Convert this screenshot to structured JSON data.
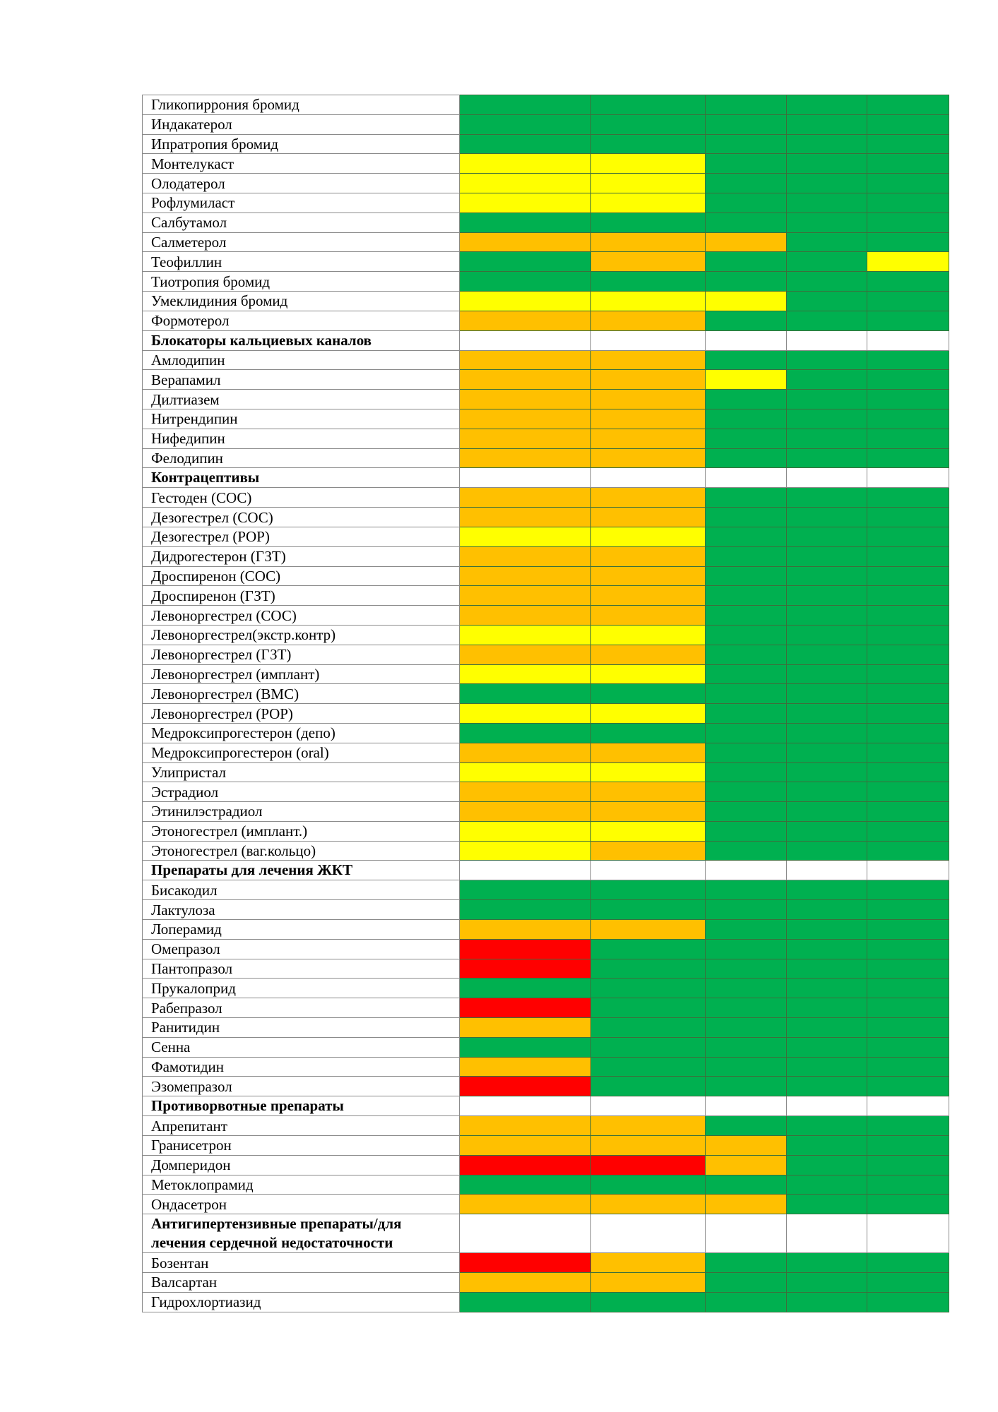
{
  "table": {
    "rows": [
      {
        "label": "Гликопиррония бромид",
        "colors": [
          "#00b050",
          "#00b050",
          "#00b050",
          "#00b050",
          "#00b050"
        ]
      },
      {
        "label": "Индакатерол",
        "colors": [
          "#00b050",
          "#00b050",
          "#00b050",
          "#00b050",
          "#00b050"
        ]
      },
      {
        "label": "Ипратропия бромид",
        "colors": [
          "#00b050",
          "#00b050",
          "#00b050",
          "#00b050",
          "#00b050"
        ]
      },
      {
        "label": "Монтелукаст",
        "colors": [
          "#ffff00",
          "#ffff00",
          "#00b050",
          "#00b050",
          "#00b050"
        ]
      },
      {
        "label": "Олодатерол",
        "colors": [
          "#ffff00",
          "#ffff00",
          "#00b050",
          "#00b050",
          "#00b050"
        ]
      },
      {
        "label": "Рофлумиласт",
        "colors": [
          "#ffff00",
          "#ffff00",
          "#00b050",
          "#00b050",
          "#00b050"
        ]
      },
      {
        "label": "Салбутамол",
        "colors": [
          "#00b050",
          "#00b050",
          "#00b050",
          "#00b050",
          "#00b050"
        ]
      },
      {
        "label": "Салметерол",
        "colors": [
          "#ffc000",
          "#ffc000",
          "#ffc000",
          "#00b050",
          "#00b050"
        ]
      },
      {
        "label": "Теофиллин",
        "colors": [
          "#00b050",
          "#ffc000",
          "#00b050",
          "#00b050",
          "#ffff00"
        ]
      },
      {
        "label": "Тиотропия бромид",
        "colors": [
          "#00b050",
          "#00b050",
          "#00b050",
          "#00b050",
          "#00b050"
        ]
      },
      {
        "label": "Умеклидиния бромид",
        "colors": [
          "#ffff00",
          "#ffff00",
          "#ffff00",
          "#00b050",
          "#00b050"
        ]
      },
      {
        "label": "Формотерол",
        "colors": [
          "#ffc000",
          "#ffc000",
          "#00b050",
          "#00b050",
          "#00b050"
        ]
      },
      {
        "label": "Блокаторы кальциевых каналов",
        "section": true
      },
      {
        "label": "Амлодипин",
        "colors": [
          "#ffc000",
          "#ffc000",
          "#00b050",
          "#00b050",
          "#00b050"
        ]
      },
      {
        "label": "Верапамил",
        "colors": [
          "#ffc000",
          "#ffc000",
          "#ffff00",
          "#00b050",
          "#00b050"
        ]
      },
      {
        "label": "Дилтиазем",
        "colors": [
          "#ffc000",
          "#ffc000",
          "#00b050",
          "#00b050",
          "#00b050"
        ]
      },
      {
        "label": "Нитрендипин",
        "colors": [
          "#ffc000",
          "#ffc000",
          "#00b050",
          "#00b050",
          "#00b050"
        ]
      },
      {
        "label": "Нифедипин",
        "colors": [
          "#ffc000",
          "#ffc000",
          "#00b050",
          "#00b050",
          "#00b050"
        ]
      },
      {
        "label": "Фелодипин",
        "colors": [
          "#ffc000",
          "#ffc000",
          "#00b050",
          "#00b050",
          "#00b050"
        ]
      },
      {
        "label": "Контрацептивы",
        "section": true
      },
      {
        "label": "Гестоден (СОС)",
        "colors": [
          "#ffc000",
          "#ffc000",
          "#00b050",
          "#00b050",
          "#00b050"
        ]
      },
      {
        "label": "Дезогестрел (СОС)",
        "colors": [
          "#ffc000",
          "#ffc000",
          "#00b050",
          "#00b050",
          "#00b050"
        ]
      },
      {
        "label": "Дезогестрел (POP)",
        "colors": [
          "#ffff00",
          "#ffff00",
          "#00b050",
          "#00b050",
          "#00b050"
        ]
      },
      {
        "label": "Дидрогестерон (ГЗТ)",
        "colors": [
          "#ffc000",
          "#ffc000",
          "#00b050",
          "#00b050",
          "#00b050"
        ]
      },
      {
        "label": "Дроспиренон (СОС)",
        "colors": [
          "#ffc000",
          "#ffc000",
          "#00b050",
          "#00b050",
          "#00b050"
        ]
      },
      {
        "label": "Дроспиренон (ГЗТ)",
        "colors": [
          "#ffc000",
          "#ffc000",
          "#00b050",
          "#00b050",
          "#00b050"
        ]
      },
      {
        "label": "Левоноргестрел (СОС)",
        "colors": [
          "#ffc000",
          "#ffc000",
          "#00b050",
          "#00b050",
          "#00b050"
        ]
      },
      {
        "label": "Левоноргестрел(экстр.контр)",
        "colors": [
          "#ffff00",
          "#ffff00",
          "#00b050",
          "#00b050",
          "#00b050"
        ]
      },
      {
        "label": "Левоноргестрел (ГЗТ)",
        "colors": [
          "#ffc000",
          "#ffc000",
          "#00b050",
          "#00b050",
          "#00b050"
        ]
      },
      {
        "label": "Левоноргестрел (имплант)",
        "colors": [
          "#ffff00",
          "#ffff00",
          "#00b050",
          "#00b050",
          "#00b050"
        ]
      },
      {
        "label": "Левоноргестрел (ВМС)",
        "colors": [
          "#00b050",
          "#00b050",
          "#00b050",
          "#00b050",
          "#00b050"
        ]
      },
      {
        "label": "Левоноргестрел (POP)",
        "colors": [
          "#ffff00",
          "#ffff00",
          "#00b050",
          "#00b050",
          "#00b050"
        ]
      },
      {
        "label": "Медроксипрогестерон (депо)",
        "colors": [
          "#00b050",
          "#00b050",
          "#00b050",
          "#00b050",
          "#00b050"
        ]
      },
      {
        "label": "Медроксипрогестерон (oral)",
        "colors": [
          "#ffc000",
          "#ffc000",
          "#00b050",
          "#00b050",
          "#00b050"
        ]
      },
      {
        "label": "Улипристал",
        "colors": [
          "#ffff00",
          "#ffff00",
          "#00b050",
          "#00b050",
          "#00b050"
        ]
      },
      {
        "label": "Эстрадиол",
        "colors": [
          "#ffc000",
          "#ffc000",
          "#00b050",
          "#00b050",
          "#00b050"
        ]
      },
      {
        "label": "Этинилэстрадиол",
        "colors": [
          "#ffc000",
          "#ffc000",
          "#00b050",
          "#00b050",
          "#00b050"
        ]
      },
      {
        "label": "Этоногестрел (имплант.)",
        "colors": [
          "#ffff00",
          "#ffff00",
          "#00b050",
          "#00b050",
          "#00b050"
        ]
      },
      {
        "label": "Этоногестрел (ваг.кольцо)",
        "colors": [
          "#ffff00",
          "#ffc000",
          "#00b050",
          "#00b050",
          "#00b050"
        ]
      },
      {
        "label": "Препараты для лечения ЖКТ",
        "section": true
      },
      {
        "label": "Бисакодил",
        "colors": [
          "#00b050",
          "#00b050",
          "#00b050",
          "#00b050",
          "#00b050"
        ]
      },
      {
        "label": "Лактулоза",
        "colors": [
          "#00b050",
          "#00b050",
          "#00b050",
          "#00b050",
          "#00b050"
        ]
      },
      {
        "label": "Лоперамид",
        "colors": [
          "#ffc000",
          "#ffc000",
          "#00b050",
          "#00b050",
          "#00b050"
        ]
      },
      {
        "label": "Омепразол",
        "colors": [
          "#ff0000",
          "#00b050",
          "#00b050",
          "#00b050",
          "#00b050"
        ]
      },
      {
        "label": "Пантопразол",
        "colors": [
          "#ff0000",
          "#00b050",
          "#00b050",
          "#00b050",
          "#00b050"
        ]
      },
      {
        "label": "Прукалоприд",
        "colors": [
          "#00b050",
          "#00b050",
          "#00b050",
          "#00b050",
          "#00b050"
        ]
      },
      {
        "label": "Рабепразол",
        "colors": [
          "#ff0000",
          "#00b050",
          "#00b050",
          "#00b050",
          "#00b050"
        ]
      },
      {
        "label": "Ранитидин",
        "colors": [
          "#ffc000",
          "#00b050",
          "#00b050",
          "#00b050",
          "#00b050"
        ]
      },
      {
        "label": "Сенна",
        "colors": [
          "#00b050",
          "#00b050",
          "#00b050",
          "#00b050",
          "#00b050"
        ]
      },
      {
        "label": "Фамотидин",
        "colors": [
          "#ffc000",
          "#00b050",
          "#00b050",
          "#00b050",
          "#00b050"
        ]
      },
      {
        "label": "Эзомепразол",
        "colors": [
          "#ff0000",
          "#00b050",
          "#00b050",
          "#00b050",
          "#00b050"
        ]
      },
      {
        "label": "Противорвотные препараты",
        "section": true
      },
      {
        "label": "Апрепитант",
        "colors": [
          "#ffc000",
          "#ffc000",
          "#00b050",
          "#00b050",
          "#00b050"
        ]
      },
      {
        "label": "Гранисетрон",
        "colors": [
          "#ffc000",
          "#ffc000",
          "#ffc000",
          "#00b050",
          "#00b050"
        ]
      },
      {
        "label": "Домперидон",
        "colors": [
          "#ff0000",
          "#ff0000",
          "#ffc000",
          "#00b050",
          "#00b050"
        ]
      },
      {
        "label": "Метоклопрамид",
        "colors": [
          "#00b050",
          "#00b050",
          "#00b050",
          "#00b050",
          "#00b050"
        ]
      },
      {
        "label": "Ондасетрон",
        "colors": [
          "#ffc000",
          "#ffc000",
          "#ffc000",
          "#00b050",
          "#00b050"
        ]
      },
      {
        "label": "Антигипертензивные препараты/для лечения сердечной недостаточности",
        "section": true
      },
      {
        "label": "Бозентан",
        "colors": [
          "#ff0000",
          "#ffc000",
          "#00b050",
          "#00b050",
          "#00b050"
        ]
      },
      {
        "label": "Валсартан",
        "colors": [
          "#ffc000",
          "#ffc000",
          "#00b050",
          "#00b050",
          "#00b050"
        ]
      },
      {
        "label": "Гидрохлортиазид",
        "colors": [
          "#00b050",
          "#00b050",
          "#00b050",
          "#00b050",
          "#00b050"
        ]
      }
    ]
  }
}
